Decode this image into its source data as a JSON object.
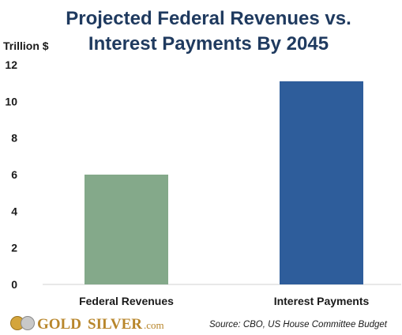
{
  "chart_data": {
    "type": "bar",
    "title_line1": "Projected Federal Revenues vs.",
    "title_line2": "Interest Payments By 2045",
    "ylabel": "Trillion $",
    "categories": [
      "Federal Revenues",
      "Interest Payments"
    ],
    "values": [
      6.0,
      11.1
    ],
    "colors": [
      "#84a98a",
      "#2e5d9b"
    ],
    "ylim": [
      0,
      12
    ],
    "yticks": [
      0,
      2,
      4,
      6,
      8,
      10,
      12
    ],
    "grid": false
  },
  "source": "Source: CBO, US House Committee Budget",
  "logo": {
    "brand_part1": "GOLD",
    "brand_part2": "SILVER",
    "brand_suffix": ".com"
  }
}
